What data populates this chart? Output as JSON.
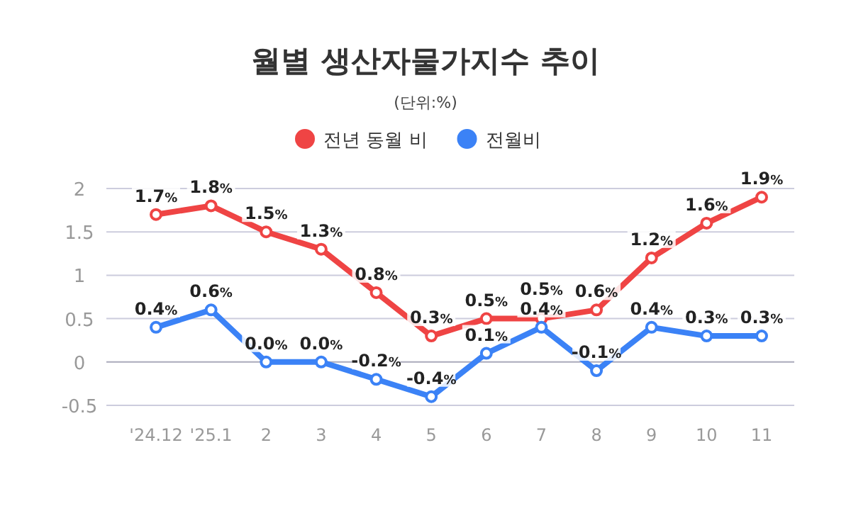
{
  "chart_data": {
    "type": "line",
    "title": "월별 생산자물가지수 추이",
    "subtitle": "(단위:%)",
    "categories": [
      "'24.12",
      "'25.1",
      "2",
      "3",
      "4",
      "5",
      "6",
      "7",
      "8",
      "9",
      "10",
      "11"
    ],
    "ylim": [
      -0.5,
      2
    ],
    "yticks": [
      -0.5,
      0,
      0.5,
      1,
      1.5,
      2
    ],
    "grid": "y",
    "legend": "top",
    "marker": "circle",
    "line_style": "solid",
    "series": [
      {
        "name": "전년 동월 비",
        "color": "#ef4444",
        "values": [
          1.7,
          1.8,
          1.5,
          1.3,
          0.8,
          0.3,
          0.5,
          0.5,
          0.6,
          1.2,
          1.6,
          1.9
        ],
        "value_labels": [
          "1.7%",
          "1.8%",
          "1.5%",
          "1.3%",
          "0.8%",
          "0.3%",
          "0.5%",
          "0.5%",
          "0.6%",
          "1.2%",
          "1.6%",
          "1.9%"
        ]
      },
      {
        "name": "전월비",
        "color": "#3b82f6",
        "values": [
          0.4,
          0.6,
          0.0,
          0.0,
          -0.2,
          -0.4,
          0.1,
          0.4,
          -0.1,
          0.4,
          0.3,
          0.3
        ],
        "value_labels": [
          "0.4%",
          "0.6%",
          "0.0%",
          "0.0%",
          "-0.2%",
          "-0.4%",
          "0.1%",
          "0.4%",
          "-0.1%",
          "0.4%",
          "0.3%",
          "0.3%"
        ]
      }
    ]
  }
}
